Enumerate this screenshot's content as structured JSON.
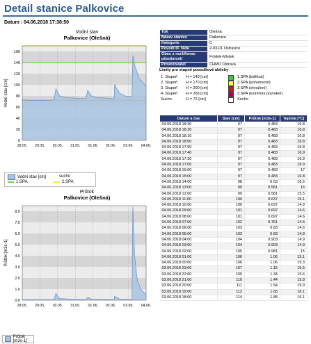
{
  "page": {
    "title": "Detail stanice Palkovice",
    "date_label": "Datum : 04.06.2018 17:38:50"
  },
  "chart1": {
    "title": "Vodní stav",
    "subtitle": "Palkovice (Olešná)",
    "ylabel": "Vodní stav [cm]",
    "legend": {
      "series_label": "Vodní stav [cm]",
      "sucho_label": "sucho",
      "spa1_label": "1.SPA",
      "spa2_label": "2.SPA"
    }
  },
  "chart2": {
    "title": "Průtok",
    "subtitle": "Palkovice (Olešná)",
    "ylabel": "Průtok [m3s-1]",
    "legend": {
      "series_label": "Průtok [m3s-1]"
    }
  },
  "info": [
    {
      "k": "Tok",
      "v": "Olešná"
    },
    {
      "k": "Název stanice",
      "v": "Palkovice"
    },
    {
      "k": "Kategorie",
      "v": "C"
    },
    {
      "k": "Povodí III. řádu",
      "v": "2-03-01 Ostravice"
    },
    {
      "k": "Obec s rozšířenou působností",
      "v": "Frýdek-Místek"
    },
    {
      "k": "Provozovatel",
      "v": "ČHMÚ Ostrava"
    }
  ],
  "limits": {
    "heading": "Limity pro stupně povodňové aktivity",
    "rows": [
      {
        "stage": "1. Stupeň",
        "h": "H = 140 [cm]",
        "color": "#33cc33",
        "label": "1.SPA (bdělost)"
      },
      {
        "stage": "2. Stupeň",
        "h": "H = 170 [cm]",
        "color": "#ffff33",
        "label": "2.SPA (pohotovost)"
      },
      {
        "stage": "3. Stupeň",
        "h": "H = 200 [cm]",
        "color": "#dd1111",
        "label": "3.SPA (ohrožení)"
      },
      {
        "stage": "4. Stupeň",
        "h": "H = 266 [cm]",
        "color": "#aa0055",
        "label": "3.SPA (extrémní povodeň)"
      },
      {
        "stage": "Sucho",
        "h": "H = 72 [cm]",
        "color": "#ffffff",
        "label": "Sucho"
      }
    ]
  },
  "table": {
    "headers": [
      "Datum a čas",
      "Stav [cm]",
      "Průtok [m3s-1]",
      "Teplota [°C]"
    ],
    "rows": [
      [
        "04.06.2018 18:30",
        "97",
        "0.483",
        "16.8"
      ],
      [
        "04.06.2018 18:20",
        "97",
        "0.483",
        "16.8"
      ],
      [
        "04.06.2018 18:10",
        "97",
        "0.483",
        "16.8"
      ],
      [
        "04.06.2018 18:00",
        "97",
        "0.483",
        "16.8"
      ],
      [
        "04.06.2018 17:50",
        "97",
        "0.483",
        "16.8"
      ],
      [
        "04.06.2018 17:40",
        "97",
        "0.483",
        "16.9"
      ],
      [
        "04.06.2018 17:30",
        "97",
        "0.483",
        "16.9"
      ],
      [
        "04.06.2018 17:00",
        "97",
        "0.483",
        "16.9"
      ],
      [
        "04.06.2018 16:00",
        "97",
        "0.483",
        "17"
      ],
      [
        "04.06.2018 15:00",
        "97",
        "0.483",
        "16.8"
      ],
      [
        "04.06.2018 14:00",
        "98",
        "0.53",
        "16.5"
      ],
      [
        "04.06.2018 13:00",
        "99",
        "0.581",
        "16"
      ],
      [
        "04.06.2018 12:00",
        "99",
        "0.581",
        "15.5"
      ],
      [
        "04.06.2018 11:00",
        "100",
        "0.637",
        "15.1"
      ],
      [
        "04.06.2018 10:00",
        "100",
        "0.637",
        "14.9"
      ],
      [
        "04.06.2018 09:00",
        "101",
        "0.697",
        "14.6"
      ],
      [
        "04.06.2018 08:00",
        "101",
        "0.697",
        "14.6"
      ],
      [
        "04.06.2018 07:00",
        "102",
        "0.761",
        "14.6"
      ],
      [
        "04.06.2018 06:00",
        "103",
        "0.83",
        "14.6"
      ],
      [
        "04.06.2018 05:00",
        "103",
        "0.83",
        "14.8"
      ],
      [
        "04.06.2018 04:00",
        "104",
        "0.903",
        "14.9"
      ],
      [
        "04.06.2018 03:00",
        "104",
        "0.903",
        "14.9"
      ],
      [
        "04.06.2018 02:00",
        "105",
        "0.981",
        "15"
      ],
      [
        "04.06.2018 01:00",
        "106",
        "1.06",
        "15.1"
      ],
      [
        "04.06.2018 00:00",
        "106",
        "1.06",
        "15.3"
      ],
      [
        "03.06.2018 23:00",
        "107",
        "1.15",
        "15.5"
      ],
      [
        "03.06.2018 22:00",
        "109",
        "1.34",
        "15.6"
      ],
      [
        "03.06.2018 21:00",
        "110",
        "1.44",
        "15.8"
      ],
      [
        "03.06.2018 20:00",
        "111",
        "1.54",
        "15.9"
      ],
      [
        "03.06.2018 19:00",
        "112",
        "1.65",
        "16.1"
      ],
      [
        "03.06.2018 18:00",
        "114",
        "1.88",
        "16.1"
      ]
    ]
  },
  "chart_data": [
    {
      "type": "area",
      "title": "Vodní stav",
      "subtitle": "Palkovice (Olešná)",
      "ylabel": "Vodní stav [cm]",
      "ylim": [
        0,
        170
      ],
      "yticks": [
        0,
        20,
        40,
        60,
        80,
        100,
        120,
        140,
        160
      ],
      "xlim": [
        0,
        7
      ],
      "xticks": [
        "28.05.",
        "29.05.",
        "30.05.",
        "31.05.",
        "01.06.",
        "02.06.",
        "03.06.",
        "04.06."
      ],
      "reference_lines": [
        {
          "name": "1.SPA",
          "value": 140,
          "color": "#66dd33"
        },
        {
          "name": "2.SPA",
          "value": 170,
          "color": "#eeee33"
        },
        {
          "name": "sucho",
          "value": 72,
          "color": "#cc8833"
        }
      ],
      "series": [
        {
          "name": "Vodní stav [cm]",
          "color": "#a9c6e0",
          "x": [
            0,
            0.35,
            0.6,
            1.0,
            1.5,
            1.8,
            1.9,
            2.1,
            2.5,
            3.0,
            3.6,
            3.7,
            3.9,
            4.2,
            4.8,
            5.2,
            5.22,
            5.5,
            5.8,
            6.0,
            6.2,
            6.25,
            6.35,
            6.6,
            7.0
          ],
          "y": [
            73,
            72,
            72,
            72,
            72,
            73,
            93,
            80,
            77,
            76,
            75,
            90,
            80,
            77,
            76,
            75,
            100,
            85,
            80,
            79,
            79,
            153,
            135,
            112,
            97
          ]
        }
      ]
    },
    {
      "type": "area",
      "title": "Průtok",
      "subtitle": "Palkovice (Olešná)",
      "ylabel": "Průtok [m3s-1]",
      "ylim": [
        0,
        8.5
      ],
      "yticks": [
        0.0,
        1.0,
        2.0,
        3.0,
        4.0,
        5.0,
        6.0,
        7.0,
        8.0
      ],
      "xlim": [
        0,
        7
      ],
      "xticks": [
        "28.05.",
        "29.05.",
        "30.05.",
        "31.05.",
        "01.06.",
        "02.06.",
        "03.06.",
        "04.06."
      ],
      "series": [
        {
          "name": "Průtok [m3s-1]",
          "color": "#a9c6e0",
          "x": [
            0,
            1.0,
            1.8,
            1.9,
            2.1,
            3.0,
            3.6,
            3.7,
            3.9,
            5.2,
            5.22,
            5.5,
            6.0,
            6.2,
            6.25,
            6.35,
            6.5,
            6.7,
            7.0
          ],
          "y": [
            0.05,
            0.05,
            0.05,
            0.6,
            0.15,
            0.08,
            0.05,
            0.25,
            0.1,
            0.05,
            0.35,
            0.1,
            0.08,
            0.08,
            8.4,
            4.0,
            1.8,
            1.0,
            0.48
          ]
        }
      ]
    }
  ]
}
